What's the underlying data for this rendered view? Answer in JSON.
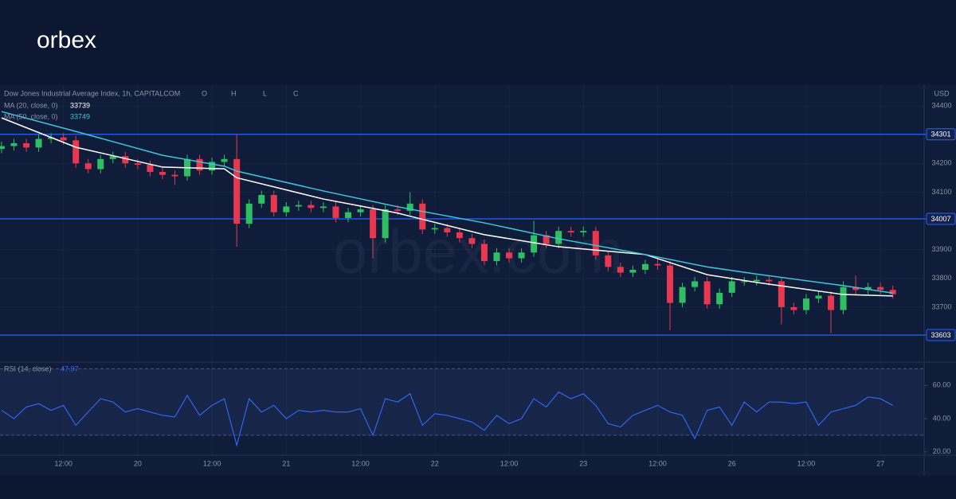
{
  "brand": "orbex",
  "watermark": "orbex.com",
  "chart_data": [
    {
      "type": "candlestick",
      "title": "Dow Jones Industrial Average Index, 1h, CAPITALCOM",
      "ohlc_labels": [
        "O",
        "H",
        "L",
        "C"
      ],
      "currency": "USD",
      "up_color": "#2fbf62",
      "down_color": "#e8384f",
      "level_color": "#2962ff",
      "x": [
        0,
        2,
        4,
        6,
        8,
        10,
        12,
        14,
        16,
        18,
        20,
        22,
        24,
        26,
        28,
        30,
        32,
        34,
        36,
        38,
        40,
        42,
        44,
        46,
        48,
        50,
        52,
        54,
        56,
        58,
        60,
        62,
        64,
        66,
        68,
        70,
        72,
        74,
        76,
        78,
        80,
        82,
        84,
        86,
        88,
        90,
        92,
        94,
        96,
        98,
        100,
        102,
        104,
        106,
        108,
        110,
        112,
        114,
        116,
        118,
        120,
        122,
        124,
        126,
        128,
        130,
        132,
        134,
        136,
        138,
        140,
        142,
        144
      ],
      "open": [
        34250,
        34260,
        34270,
        34255,
        34285,
        34290,
        34280,
        34200,
        34180,
        34215,
        34225,
        34200,
        34195,
        34170,
        34160,
        34155,
        34215,
        34175,
        34205,
        34215,
        33990,
        34060,
        34090,
        34030,
        34050,
        34055,
        34045,
        34050,
        34010,
        34030,
        34040,
        33940,
        34040,
        34035,
        34060,
        33970,
        33975,
        33960,
        33940,
        33920,
        33860,
        33890,
        33870,
        33890,
        33950,
        33920,
        33965,
        33960,
        33965,
        33880,
        33840,
        33820,
        33830,
        33850,
        33845,
        33715,
        33770,
        33790,
        33710,
        33750,
        33790,
        33790,
        33795,
        33790,
        33700,
        33690,
        33730,
        33740,
        33690,
        33770,
        33760,
        33770,
        33760
      ],
      "high": [
        34275,
        34285,
        34285,
        34300,
        34305,
        34305,
        34295,
        34215,
        34230,
        34240,
        34240,
        34215,
        34210,
        34185,
        34175,
        34230,
        34230,
        34220,
        34230,
        34300,
        34075,
        34105,
        34105,
        34065,
        34070,
        34070,
        34065,
        34065,
        34045,
        34055,
        34055,
        34055,
        34055,
        34100,
        34075,
        33990,
        33990,
        33975,
        33955,
        33935,
        33905,
        33905,
        33905,
        34000,
        33965,
        33980,
        33980,
        33980,
        33980,
        33895,
        33855,
        33845,
        33865,
        33870,
        33860,
        33785,
        33805,
        33805,
        33765,
        33805,
        33805,
        33810,
        33810,
        33805,
        33715,
        33745,
        33755,
        33755,
        33790,
        33810,
        33785,
        33785,
        33775
      ],
      "low": [
        34235,
        34245,
        34240,
        34240,
        34270,
        34265,
        34185,
        34165,
        34165,
        34200,
        34185,
        34180,
        34155,
        34145,
        34125,
        34140,
        34160,
        34160,
        34190,
        33910,
        33975,
        34045,
        34015,
        34015,
        34035,
        34030,
        34030,
        33995,
        33995,
        34015,
        33870,
        33925,
        34020,
        34020,
        33955,
        33955,
        33945,
        33925,
        33905,
        33845,
        33845,
        33855,
        33855,
        33875,
        33905,
        33905,
        33945,
        33945,
        33865,
        33825,
        33805,
        33805,
        33815,
        33830,
        33620,
        33700,
        33755,
        33695,
        33695,
        33735,
        33775,
        33775,
        33775,
        33640,
        33675,
        33675,
        33715,
        33610,
        33675,
        33745,
        33745,
        33745,
        33730
      ],
      "close": [
        34260,
        34270,
        34255,
        34285,
        34290,
        34280,
        34200,
        34180,
        34215,
        34225,
        34200,
        34195,
        34170,
        34160,
        34155,
        34215,
        34175,
        34205,
        34215,
        33990,
        34060,
        34090,
        34030,
        34050,
        34055,
        34045,
        34050,
        34010,
        34030,
        34040,
        33940,
        34040,
        34035,
        34060,
        33970,
        33975,
        33960,
        33940,
        33920,
        33860,
        33890,
        33870,
        33890,
        33950,
        33920,
        33965,
        33960,
        33965,
        33880,
        33840,
        33820,
        33830,
        33850,
        33845,
        33715,
        33770,
        33790,
        33710,
        33750,
        33790,
        33790,
        33795,
        33790,
        33700,
        33690,
        33730,
        33740,
        33690,
        33770,
        33760,
        33770,
        33760,
        33745
      ],
      "series": [
        {
          "name": "MA (20, close, 0)",
          "color": "#ffffff",
          "x": [
            0,
            12,
            26,
            36,
            38,
            52,
            64,
            78,
            90,
            104,
            114,
            122,
            136,
            144
          ],
          "values": [
            34358,
            34256,
            34187,
            34181,
            34150,
            34076,
            34027,
            33952,
            33910,
            33883,
            33813,
            33786,
            33744,
            33739
          ]
        },
        {
          "name": "MA (50, close, 0)",
          "color": "#3cc6d8",
          "x": [
            0,
            12,
            26,
            36,
            38,
            52,
            64,
            78,
            90,
            104,
            114,
            122,
            136,
            144
          ],
          "values": [
            34380,
            34311,
            34228,
            34190,
            34173,
            34104,
            34049,
            33993,
            33938,
            33883,
            33840,
            33815,
            33775,
            33749
          ]
        }
      ],
      "levels": [
        34301,
        34007,
        33603
      ],
      "xlim": [
        -0.25,
        148.8
      ],
      "xticks": [
        {
          "value": 10,
          "label": "12:00"
        },
        {
          "value": 22,
          "label": "20"
        },
        {
          "value": 34,
          "label": "12:00"
        },
        {
          "value": 46,
          "label": "21"
        },
        {
          "value": 58,
          "label": "12:00"
        },
        {
          "value": 70,
          "label": "22"
        },
        {
          "value": 82,
          "label": "12:00"
        },
        {
          "value": 94,
          "label": "23"
        },
        {
          "value": 106,
          "label": "12:00"
        },
        {
          "value": 118,
          "label": "26"
        },
        {
          "value": 130,
          "label": "12:00"
        },
        {
          "value": 142,
          "label": "27"
        }
      ],
      "ylim": [
        33509,
        34469
      ],
      "yticks": [
        33700,
        33800,
        33900,
        34100,
        34200,
        34400
      ]
    },
    {
      "type": "line",
      "title": "RSI (14, close)",
      "color": "#2f6bff",
      "band_color": "rgba(80,100,170,0.12)",
      "values": [
        45,
        40,
        47,
        49,
        45,
        48,
        36,
        44,
        52,
        50,
        44,
        46,
        44,
        42,
        41,
        54,
        42,
        48,
        52,
        24,
        52,
        44,
        48,
        40,
        45,
        44,
        45,
        44,
        44,
        46,
        30,
        52,
        50,
        55,
        36,
        43,
        42,
        40,
        38,
        33,
        42,
        37,
        40,
        52,
        47,
        56,
        52,
        55,
        48,
        37,
        35,
        42,
        45,
        48,
        44,
        42,
        28,
        45,
        47,
        36,
        50,
        44,
        50,
        50,
        49,
        50,
        36,
        44,
        46,
        48,
        53,
        52,
        47.97
      ],
      "bands": [
        30,
        70
      ],
      "ylim": [
        18,
        74
      ],
      "yticks": [
        {
          "value": 20,
          "label": "20.00"
        },
        {
          "value": 40,
          "label": "40.00"
        },
        {
          "value": 60,
          "label": "60.00"
        }
      ]
    }
  ]
}
